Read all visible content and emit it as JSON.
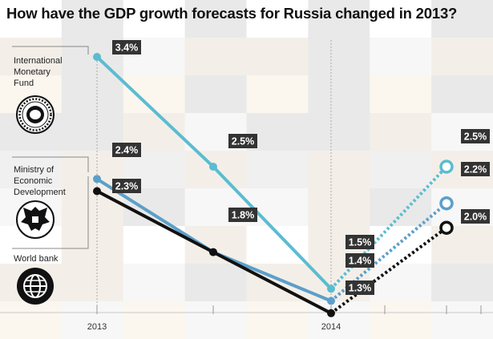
{
  "title": "How have the GDP growth forecasts for Russia changed in 2013?",
  "sources": [
    {
      "label": "International\nMonetary\nFund",
      "icon": "imf-seal-icon",
      "color": "#5bbcd1"
    },
    {
      "label": "Ministry of\nEconomic\nDevelopment",
      "icon": "russian-eagle-icon",
      "color": "#5c9fca"
    },
    {
      "label": "World bank",
      "icon": "globe-icon",
      "color": "#111111"
    }
  ],
  "chart_data": {
    "type": "line",
    "x_ticks": [
      "2013",
      "2014"
    ],
    "value_unit": "%",
    "series": [
      {
        "name": "International Monetary Fund",
        "color": "#5bbcd1",
        "values": [
          3.4,
          2.5,
          1.5
        ],
        "forecast": 2.5
      },
      {
        "name": "Ministry of Economic Development",
        "color": "#5c9fca",
        "values": [
          2.4,
          1.8,
          1.4
        ],
        "forecast": 2.2
      },
      {
        "name": "World bank",
        "color": "#111111",
        "values": [
          2.3,
          1.8,
          1.3
        ],
        "forecast": 2.0
      }
    ],
    "value_labels": [
      {
        "text": "3.4%"
      },
      {
        "text": "2.5%"
      },
      {
        "text": "1.5%"
      },
      {
        "text": "2.5%"
      },
      {
        "text": "2.4%"
      },
      {
        "text": "1.8%"
      },
      {
        "text": "1.4%"
      },
      {
        "text": "2.2%"
      },
      {
        "text": "2.3%"
      },
      {
        "text": "1.3%"
      },
      {
        "text": "2.0%"
      }
    ]
  }
}
